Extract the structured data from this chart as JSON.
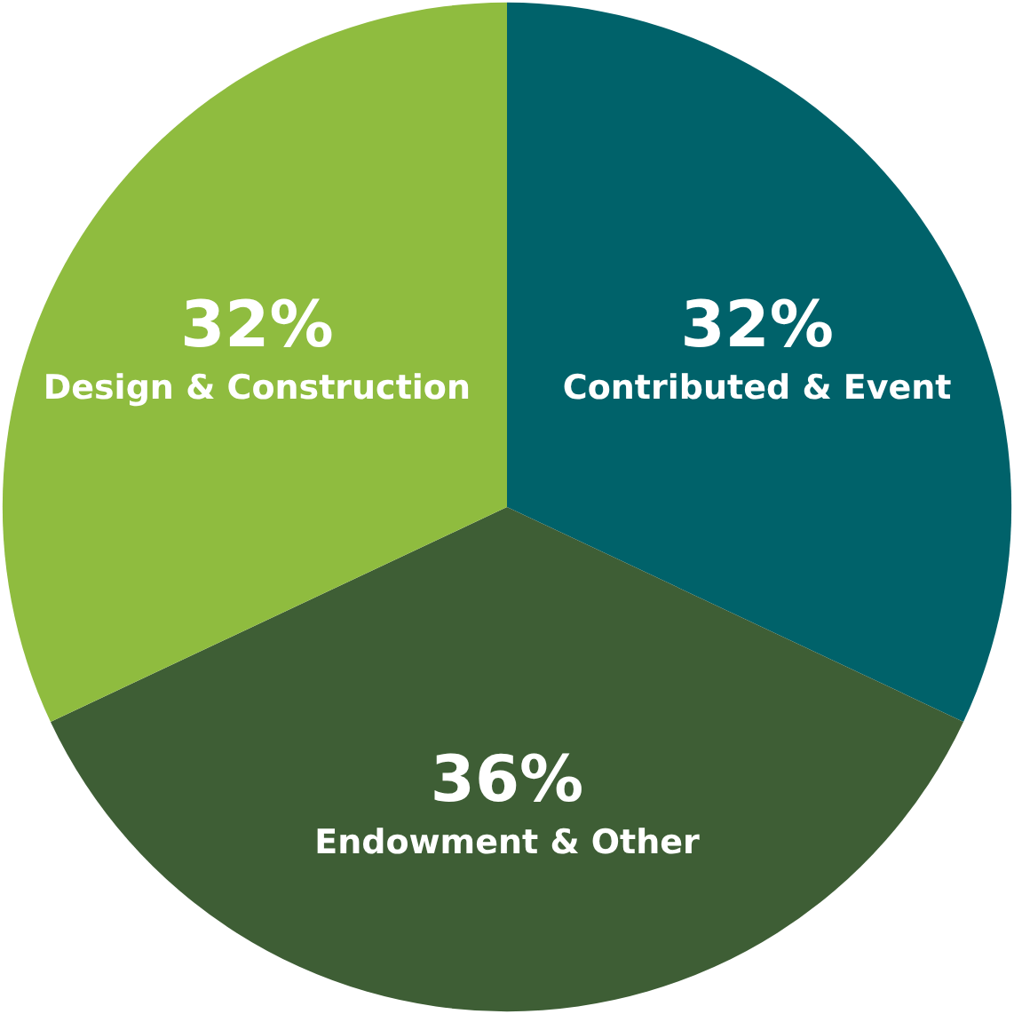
{
  "chart_data": {
    "type": "pie",
    "categories": [
      "Contributed & Event",
      "Endowment & Other",
      "Design & Construction"
    ],
    "values": [
      32,
      36,
      32
    ],
    "value_labels": [
      "32%",
      "36%",
      "32%"
    ],
    "colors": [
      "#00626a",
      "#3e5e35",
      "#8fbc3f"
    ],
    "legend": false
  }
}
